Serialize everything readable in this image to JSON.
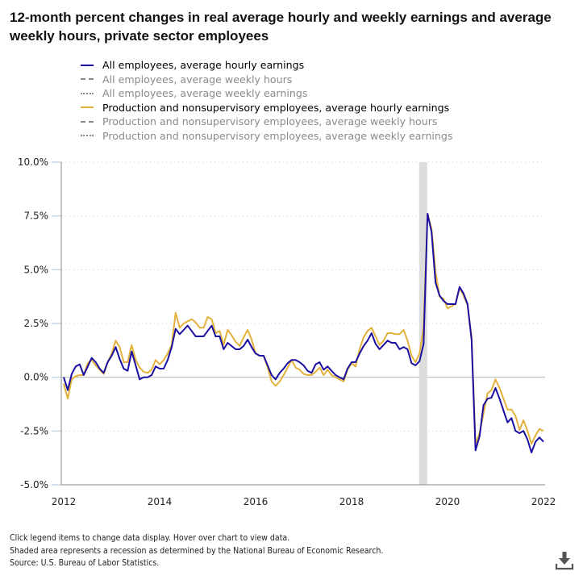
{
  "title": "12-month percent changes in real average hourly and weekly earnings and average weekly hours, private sector employees",
  "legend": [
    {
      "label": "All employees, average hourly earnings",
      "style": "solid",
      "color": "#1a0fa0",
      "active": true
    },
    {
      "label": "All employees, average weekly hours",
      "style": "dashed",
      "color": "#8a8a8a",
      "active": false
    },
    {
      "label": "All employees, average weekly earnings",
      "style": "dotted",
      "color": "#8a8a8a",
      "active": false
    },
    {
      "label": "Production and nonsupervisory employees, average hourly earnings",
      "style": "solid",
      "color": "#e3b23c",
      "active": true
    },
    {
      "label": "Production and nonsupervisory employees, average weekly hours",
      "style": "dashed",
      "color": "#8a8a8a",
      "active": false
    },
    {
      "label": "Production and nonsupervisory employees, average weekly earnings",
      "style": "dotted",
      "color": "#8a8a8a",
      "active": false
    }
  ],
  "footer": {
    "line1": "Click legend items to change data display. Hover over chart to view data.",
    "line2": "Shaded area represents a recession as determined by the National Bureau of Economic Research.",
    "line3": "Source: U.S. Bureau of Labor Statistics."
  },
  "download_icon": "download-icon",
  "chart_data": {
    "type": "line",
    "title": "12-month percent changes in real average hourly and weekly earnings and average weekly hours, private sector employees",
    "xlabel": "",
    "ylabel": "",
    "x_start": "2012-01",
    "x_end": "2022-01",
    "x_frequency": "monthly",
    "xlim": [
      2012,
      2022
    ],
    "xticks": [
      "2012",
      "2014",
      "2016",
      "2018",
      "2020",
      "2022"
    ],
    "ylim": [
      -5.0,
      10.0
    ],
    "yticks": [
      10.0,
      7.5,
      5.0,
      2.5,
      0.0,
      -2.5,
      -5.0
    ],
    "ytick_labels": [
      "10.0%",
      "7.5%",
      "5.0%",
      "2.5%",
      "0.0%",
      "-2.5%",
      "-5.0%"
    ],
    "grid": "horizontal dotted",
    "recession_shading": {
      "start_index": 89,
      "end_index": 91
    },
    "series": [
      {
        "name": "All employees, average hourly earnings",
        "color": "#1a0fa0",
        "values": [
          0.0,
          -0.6,
          0.15,
          0.5,
          0.6,
          0.1,
          0.5,
          0.9,
          0.7,
          0.4,
          0.2,
          0.7,
          1.0,
          1.4,
          0.85,
          0.4,
          0.3,
          1.2,
          0.55,
          -0.1,
          0.0,
          0.0,
          0.1,
          0.5,
          0.4,
          0.4,
          0.8,
          1.4,
          2.25,
          2.0,
          2.2,
          2.4,
          2.15,
          1.9,
          1.9,
          1.9,
          2.15,
          2.4,
          1.9,
          1.9,
          1.3,
          1.6,
          1.45,
          1.3,
          1.3,
          1.45,
          1.75,
          1.4,
          1.1,
          1.0,
          1.0,
          0.55,
          0.1,
          -0.1,
          0.2,
          0.4,
          0.65,
          0.8,
          0.8,
          0.7,
          0.55,
          0.3,
          0.2,
          0.6,
          0.7,
          0.35,
          0.5,
          0.3,
          0.1,
          0.0,
          -0.1,
          0.4,
          0.7,
          0.7,
          1.1,
          1.45,
          1.7,
          2.05,
          1.55,
          1.3,
          1.5,
          1.7,
          1.6,
          1.6,
          1.3,
          1.4,
          1.3,
          0.65,
          0.55,
          0.75,
          1.55,
          7.6,
          6.75,
          4.4,
          3.8,
          3.55,
          3.4,
          3.4,
          3.4,
          4.2,
          3.9,
          3.4,
          1.75,
          -3.4,
          -2.75,
          -1.3,
          -1.0,
          -0.95,
          -0.5,
          -1.0,
          -1.55,
          -2.1,
          -1.9,
          -2.5,
          -2.6,
          -2.5,
          -2.9,
          -3.5,
          -3.0,
          -2.8,
          -3.0
        ]
      },
      {
        "name": "Production and nonsupervisory employees, average hourly earnings",
        "color": "#e3b23c",
        "values": [
          -0.3,
          -1.0,
          -0.1,
          0.05,
          0.1,
          0.1,
          0.65,
          0.8,
          0.55,
          0.35,
          0.15,
          0.7,
          1.1,
          1.7,
          1.4,
          0.7,
          0.7,
          1.5,
          0.8,
          0.45,
          0.25,
          0.2,
          0.35,
          0.8,
          0.6,
          0.8,
          1.1,
          1.5,
          3.0,
          2.3,
          2.5,
          2.6,
          2.7,
          2.55,
          2.3,
          2.3,
          2.8,
          2.7,
          2.05,
          2.15,
          1.5,
          2.2,
          1.95,
          1.65,
          1.45,
          1.85,
          2.2,
          1.75,
          1.1,
          1.0,
          1.0,
          0.45,
          -0.2,
          -0.4,
          -0.2,
          0.1,
          0.45,
          0.8,
          0.45,
          0.35,
          0.15,
          0.1,
          0.1,
          0.25,
          0.45,
          0.1,
          0.35,
          0.1,
          0.0,
          -0.1,
          -0.2,
          0.35,
          0.65,
          0.5,
          1.3,
          1.85,
          2.15,
          2.3,
          1.9,
          1.5,
          1.7,
          2.05,
          2.05,
          2.0,
          2.0,
          2.2,
          1.7,
          1.0,
          0.7,
          1.1,
          2.3,
          7.6,
          6.9,
          4.9,
          3.75,
          3.65,
          3.2,
          3.3,
          3.4,
          4.15,
          3.8,
          3.35,
          1.9,
          -3.1,
          -2.6,
          -1.7,
          -0.75,
          -0.6,
          -0.1,
          -0.5,
          -1.0,
          -1.5,
          -1.5,
          -1.8,
          -2.45,
          -2.0,
          -2.5,
          -3.1,
          -2.7,
          -2.4,
          -2.5
        ]
      }
    ]
  }
}
